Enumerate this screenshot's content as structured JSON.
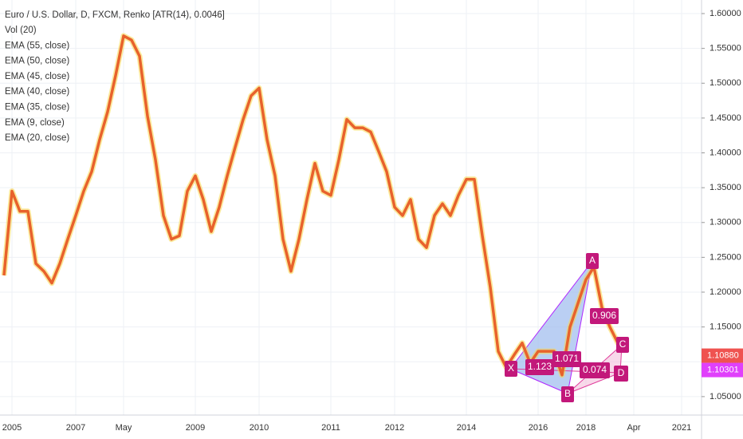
{
  "chart_data": {
    "type": "line",
    "title": "Euro / U.S. Dollar, D, FXCM, Renko [ATR(14), 0.0046]",
    "indicators": [
      "Vol (20)",
      "EMA (55, close)",
      "EMA (50, close)",
      "EMA (45, close)",
      "EMA (40, close)",
      "EMA (35, close)",
      "EMA (9, close)",
      "EMA (20, close)"
    ],
    "categories": [
      null,
      "2005",
      null,
      null,
      null,
      null,
      null,
      null,
      null,
      "2007",
      null,
      null,
      null,
      null,
      null,
      "May",
      null,
      null,
      null,
      null,
      null,
      null,
      null,
      null,
      "2009",
      null,
      null,
      null,
      null,
      null,
      null,
      null,
      "2010",
      null,
      null,
      null,
      null,
      null,
      null,
      null,
      null,
      "2011",
      null,
      null,
      null,
      null,
      null,
      null,
      null,
      "2012",
      null,
      null,
      null,
      null,
      null,
      null,
      null,
      null,
      "2014",
      null,
      null,
      null,
      null,
      null,
      null,
      null,
      null,
      "2016",
      null,
      null,
      null,
      null,
      null,
      "2018",
      null,
      null,
      null,
      null,
      null,
      "Apr",
      null,
      null,
      null,
      null,
      null,
      "2021"
    ],
    "series": [
      {
        "name": "EUR/USD",
        "color": "#e8622c",
        "values": [
          1.224,
          1.345,
          1.316,
          1.316,
          1.241,
          1.23,
          1.213,
          1.241,
          1.276,
          1.31,
          1.345,
          1.373,
          1.419,
          1.459,
          1.511,
          1.568,
          1.562,
          1.539,
          1.453,
          1.39,
          1.31,
          1.276,
          1.281,
          1.345,
          1.367,
          1.333,
          1.287,
          1.322,
          1.367,
          1.408,
          1.448,
          1.482,
          1.493,
          1.419,
          1.367,
          1.276,
          1.23,
          1.276,
          1.333,
          1.385,
          1.345,
          1.339,
          1.39,
          1.448,
          1.436,
          1.436,
          1.43,
          1.402,
          1.373,
          1.322,
          1.31,
          1.333,
          1.276,
          1.264,
          1.31,
          1.327,
          1.31,
          1.339,
          1.362,
          1.362,
          1.281,
          1.207,
          1.115,
          1.092,
          1.11,
          1.127,
          1.098,
          1.115,
          1.115,
          1.115,
          1.081,
          1.15,
          1.184,
          1.218,
          1.236,
          1.178,
          1.15,
          1.127,
          1.127,
          null,
          null,
          null,
          null,
          null,
          null,
          null
        ]
      }
    ],
    "ylim": [
      1.0235,
      1.6195
    ],
    "yticks": [
      {
        "value": 1.6,
        "label": "1.60000"
      },
      {
        "value": 1.55,
        "label": "1.55000"
      },
      {
        "value": 1.5,
        "label": "1.50000"
      },
      {
        "value": 1.45,
        "label": "1.45000"
      },
      {
        "value": 1.4,
        "label": "1.40000"
      },
      {
        "value": 1.35,
        "label": "1.35000"
      },
      {
        "value": 1.3,
        "label": "1.30000"
      },
      {
        "value": 1.25,
        "label": "1.25000"
      },
      {
        "value": 1.2,
        "label": "1.20000"
      },
      {
        "value": 1.15,
        "label": "1.15000"
      },
      {
        "value": 1.1,
        "label": "1.10000"
      },
      {
        "value": 1.05,
        "label": "1.05000"
      }
    ],
    "price_labels": [
      {
        "value": 1.1088,
        "label": "1.10880",
        "color": "#ef5350"
      },
      {
        "value": 1.10301,
        "label": "1.10301",
        "color": "#e040fb"
      }
    ],
    "pattern": {
      "points": [
        "X",
        "A",
        "B",
        "C",
        "D"
      ],
      "ratios": [
        "1.123",
        "1.071",
        "0.074",
        "0.906"
      ]
    },
    "grid": true
  }
}
